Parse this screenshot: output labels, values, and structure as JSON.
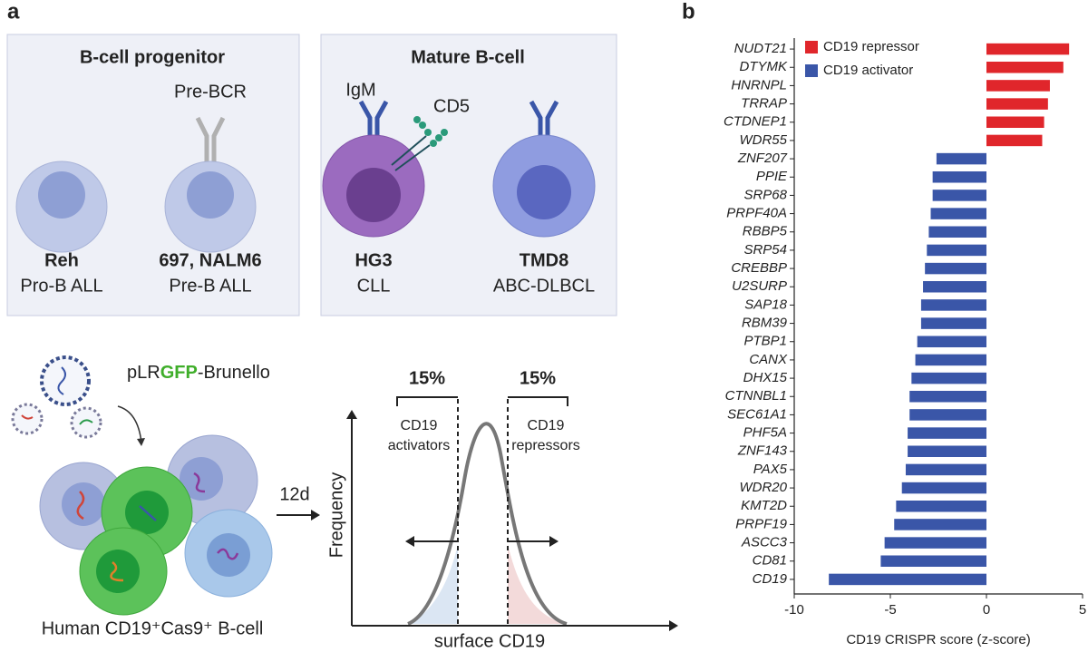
{
  "panel_labels": [
    "a",
    "b"
  ],
  "diagram": {
    "boxes": [
      {
        "title": "B-cell progenitor",
        "cells": [
          {
            "name": "Reh",
            "type": "Pro-B ALL"
          },
          {
            "name": "697, NALM6",
            "type": "Pre-B ALL",
            "receptor": "Pre-BCR"
          }
        ]
      },
      {
        "title": "Mature B-cell",
        "cells": [
          {
            "name": "HG3",
            "type": "CLL",
            "receptor": "IgM",
            "marker": "CD5"
          },
          {
            "name": "TMD8",
            "type": "ABC-DLBCL"
          }
        ]
      }
    ],
    "library": [
      "pLR",
      "GFP",
      "-Brunello"
    ],
    "cells_caption": "Human CD19⁺Cas9⁺ B-cell",
    "duration": "12d",
    "sort": {
      "left_pct": "15%",
      "right_pct": "15%",
      "left_label": [
        "CD19",
        "activators"
      ],
      "right_label": [
        "CD19",
        "repressors"
      ],
      "y_label": "Frequency",
      "x_label": "surface CD19"
    }
  },
  "chart_data": {
    "type": "barh",
    "categories": [
      "NUDT21",
      "DTYMK",
      "HNRNPL",
      "TRRAP",
      "CTDNEP1",
      "WDR55",
      "ZNF207",
      "PPIE",
      "SRP68",
      "PRPF40A",
      "RBBP5",
      "SRP54",
      "CREBBP",
      "U2SURP",
      "SAP18",
      "RBM39",
      "PTBP1",
      "CANX",
      "DHX15",
      "CTNNBL1",
      "SEC61A1",
      "PHF5A",
      "ZNF143",
      "PAX5",
      "WDR20",
      "KMT2D",
      "PRPF19",
      "ASCC3",
      "CD81",
      "CD19"
    ],
    "series": [
      {
        "name": "CD19 repressor",
        "color": "#e0262b",
        "values": [
          4.3,
          4.0,
          3.3,
          3.2,
          3.0,
          2.9,
          null,
          null,
          null,
          null,
          null,
          null,
          null,
          null,
          null,
          null,
          null,
          null,
          null,
          null,
          null,
          null,
          null,
          null,
          null,
          null,
          null,
          null,
          null,
          null
        ]
      },
      {
        "name": "CD19 activator",
        "color": "#3a56a8",
        "values": [
          null,
          null,
          null,
          null,
          null,
          null,
          -2.6,
          -2.8,
          -2.8,
          -2.9,
          -3.0,
          -3.1,
          -3.2,
          -3.3,
          -3.4,
          -3.4,
          -3.6,
          -3.7,
          -3.9,
          -4.0,
          -4.0,
          -4.1,
          -4.1,
          -4.2,
          -4.4,
          -4.7,
          -4.8,
          -5.3,
          -5.5,
          -8.2
        ]
      }
    ],
    "x_label": "CD19 CRISPR score (z-score)",
    "xlim": [
      -10,
      5
    ],
    "xticks": [
      -10,
      -5,
      0,
      5
    ],
    "legend": "upper-left"
  }
}
